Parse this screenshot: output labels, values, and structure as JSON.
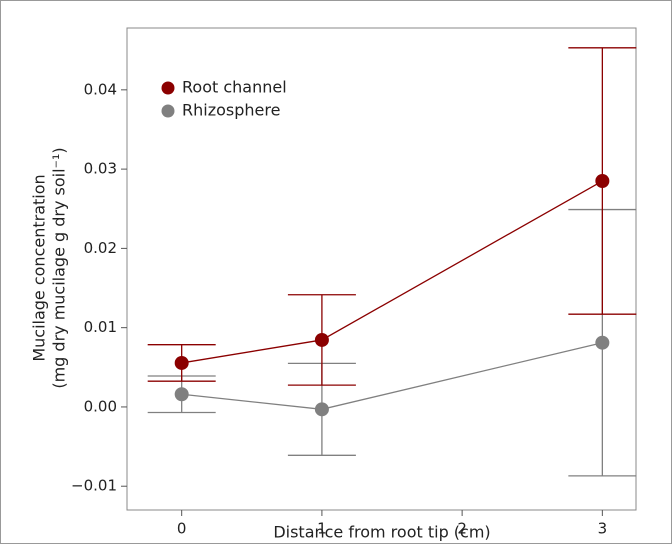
{
  "chart_data": {
    "type": "line",
    "x_label": "Distance from root tip (cm)",
    "y_label": [
      "Mucilage concentration",
      "(mg dry mucilage g dry soil⁻¹)"
    ],
    "x": [
      0,
      1,
      3
    ],
    "series": [
      {
        "name": "Root channel",
        "color": "#8b0000",
        "values": [
          0.00555,
          0.00845,
          0.0285
        ],
        "errors": [
          0.0023,
          0.0057,
          0.0168
        ]
      },
      {
        "name": "Rhizosphere",
        "color": "#808080",
        "values": [
          0.0016,
          -0.0003,
          0.0081
        ],
        "errors": [
          0.0023,
          0.0058,
          0.0168
        ]
      }
    ],
    "xlim": [
      -0.39,
      3.24
    ],
    "ylim": [
      -0.013,
      0.0478
    ],
    "xticks": [
      0,
      1,
      2,
      3
    ],
    "yticks": [
      {
        "value": -0.01,
        "label": "−0.01"
      },
      {
        "value": 0,
        "label": "0.00"
      },
      0.01,
      0.02,
      0.03,
      0.04
    ],
    "legend": "upper left"
  }
}
